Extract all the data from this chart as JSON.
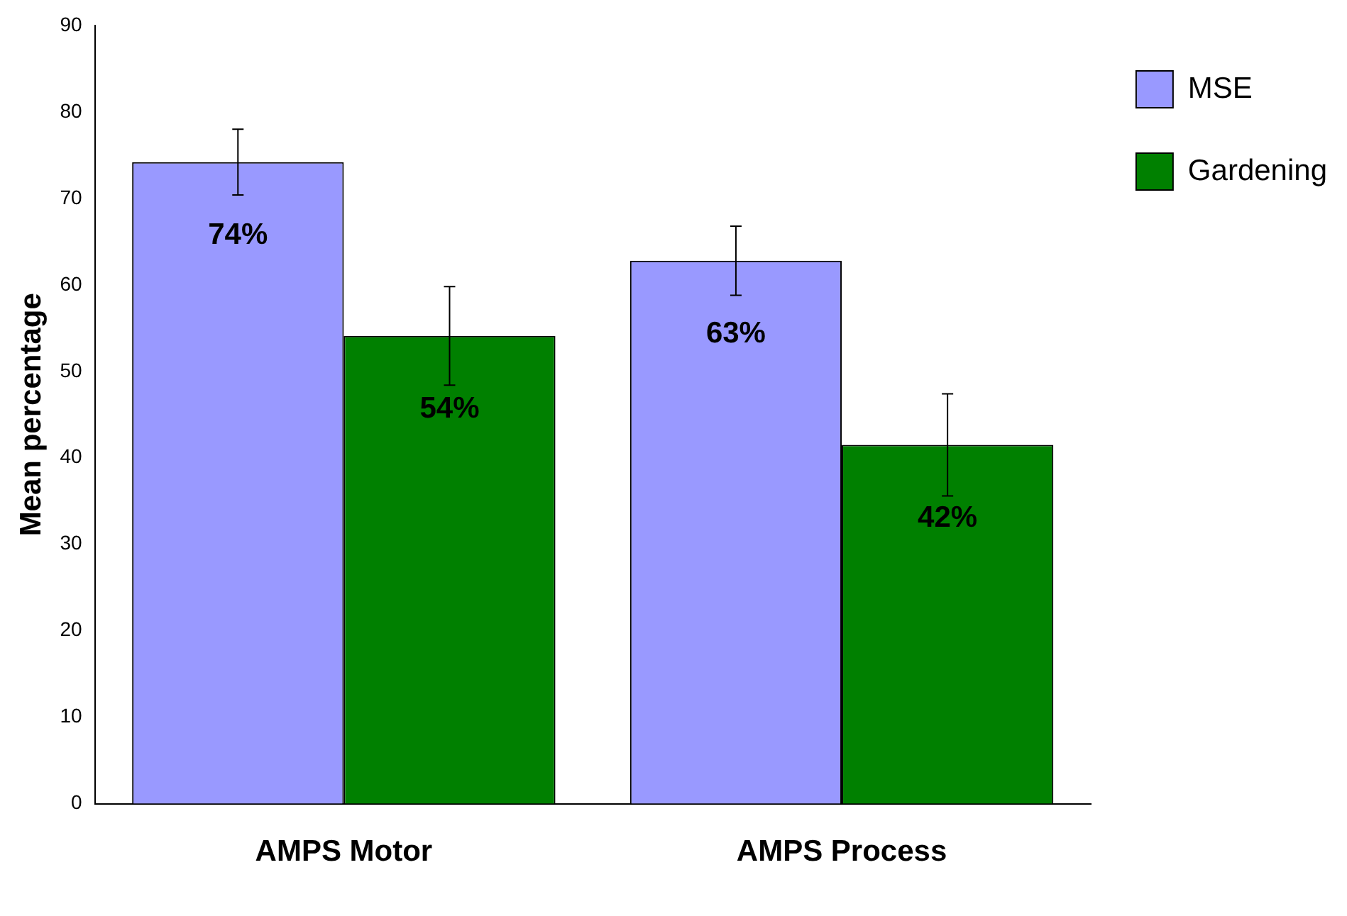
{
  "chart_data": {
    "type": "bar",
    "ylabel": "Mean percentage",
    "categories": [
      "AMPS Motor",
      "AMPS Process"
    ],
    "series": [
      {
        "name": "MSE",
        "color": "#9999ff",
        "values": [
          74.2,
          62.8
        ],
        "errors": [
          3.8,
          4.0
        ],
        "value_labels": [
          "74%",
          "63%"
        ]
      },
      {
        "name": "Gardening",
        "color": "#008000",
        "values": [
          54.1,
          41.5
        ],
        "errors": [
          5.7,
          5.9
        ],
        "value_labels": [
          "54%",
          "42%"
        ]
      }
    ],
    "ylim": [
      0,
      90
    ],
    "yticks": [
      0,
      10,
      20,
      30,
      40,
      50,
      60,
      70,
      80,
      90
    ],
    "grid": false,
    "legend": "top right"
  }
}
